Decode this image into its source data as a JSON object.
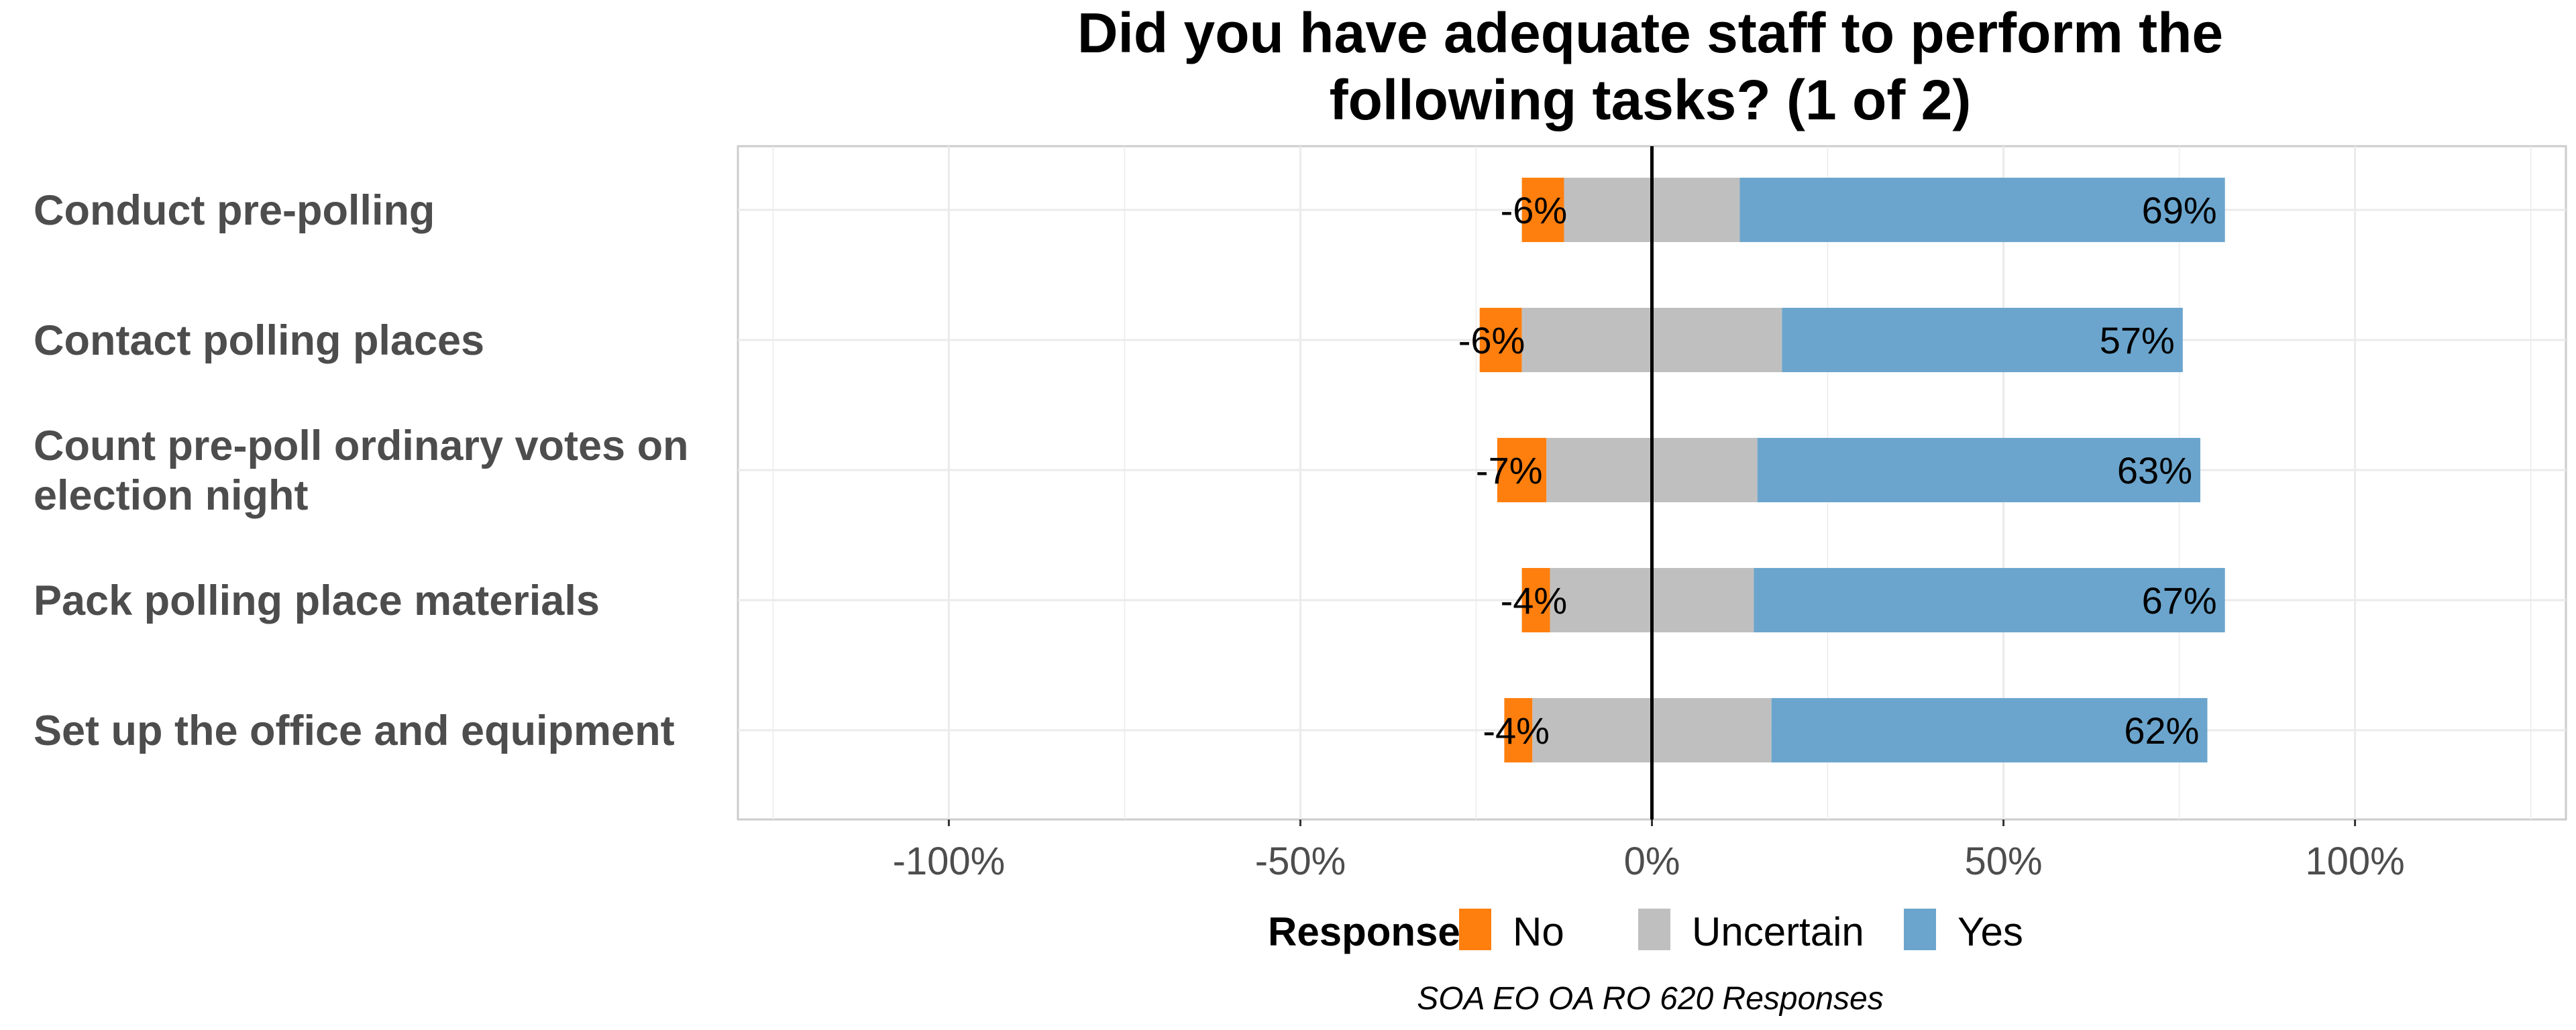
{
  "chart_data": {
    "type": "bar",
    "orientation": "horizontal",
    "stacked": "diverging",
    "title_lines": [
      "Did you have adequate staff to perform the",
      "following tasks? (1 of 2)"
    ],
    "categories": [
      {
        "lines": [
          "Conduct pre-polling"
        ]
      },
      {
        "lines": [
          "Contact polling places"
        ]
      },
      {
        "lines": [
          "Count pre-poll ordinary votes on",
          "election night"
        ]
      },
      {
        "lines": [
          "Pack polling place materials"
        ]
      },
      {
        "lines": [
          "Set up the office and equipment"
        ]
      }
    ],
    "series": [
      {
        "name": "No",
        "color": "#ff7f0e",
        "values": [
          6,
          6,
          7,
          4,
          4
        ]
      },
      {
        "name": "Uncertain",
        "color": "#bfbfbf",
        "values": [
          25,
          37,
          30,
          29,
          34
        ]
      },
      {
        "name": "Yes",
        "color": "#6ba5cd",
        "values": [
          69,
          57,
          63,
          67,
          62
        ]
      }
    ],
    "data_labels": {
      "No": [
        "-6%",
        "-6%",
        "-7%",
        "-4%",
        "-4%"
      ],
      "Yes": [
        "69%",
        "57%",
        "63%",
        "67%",
        "62%"
      ]
    },
    "xlim": [
      -130,
      130
    ],
    "x_ticks": [
      -100,
      -50,
      0,
      50,
      100
    ],
    "x_tick_labels": [
      "-100%",
      "-50%",
      "0%",
      "50%",
      "100%"
    ],
    "legend": {
      "title": "Response",
      "position": "bottom"
    },
    "grid": true,
    "caption": "SOA EO OA RO 620 Responses",
    "colors": {
      "panel_border": "#cccccc",
      "grid": "#ebebeb",
      "zero_line": "#000000"
    }
  }
}
